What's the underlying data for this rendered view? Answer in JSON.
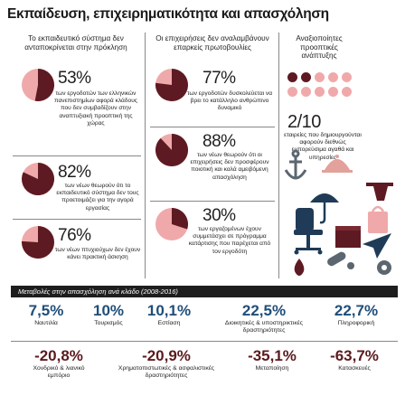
{
  "title": "Εκπαίδευση, επιχειρηματικότητα και απασχόληση",
  "colors": {
    "dark": "#5e1a22",
    "light": "#f0a9aa",
    "accent_blue": "#1f4e79"
  },
  "columns": [
    {
      "header": "Το εκπαιδευτικό σύστημα δεν ανταποκρίνεται στην πρόκληση"
    },
    {
      "header": "Οι επιχειρήσεις δεν αναλαμβάνουν επαρκείς πρωτοβουλίες"
    },
    {
      "header": "Αναξιοποίητες προοπτικές ανάπτυξης"
    }
  ],
  "stats": [
    {
      "value": "53%",
      "fraction": 0.53,
      "text": "των εργοδοτών των ελληνικών πανεπιστημίων αφορά κλάδους που δεν συμβαδίζουν στην αναπτυξιακή προοπτική της χώρας"
    },
    {
      "value": "82%",
      "fraction": 0.82,
      "text": "των νέων θεωρούν ότι το εκπαιδευτικό σύστημα δεν τους προετοιμάζει για την αγορά εργασίας"
    },
    {
      "value": "76%",
      "fraction": 0.76,
      "text": "των νέων πτυχιούχων δεν έχουν κάνει πρακτική άσκηση"
    },
    {
      "value": "77%",
      "fraction": 0.77,
      "text": "των εργοδοτών δυσκολεύεται να βρει το κατάλληλο ανθρώπινο δυναμικό"
    },
    {
      "value": "88%",
      "fraction": 0.88,
      "text": "των νέων θεωρούν ότι οι επιχειρήσεις δεν προσφέρουν ποιοτική και καλά αμειβόμενη απασχόληση"
    },
    {
      "value": "30%",
      "fraction": 0.3,
      "text": "των εργαζομένων έχουν συμμετάσχει σε πρόγραμμα κατάρτισης που παρέχεται από τον εργοδότη"
    },
    {
      "value": "2/10",
      "dots_filled": 2,
      "dots_total": 10,
      "text": "εταιρείες που δημιουργούνται αφορούν διεθνώς εμπορεύσιμα αγαθά και υπηρεσίες"
    }
  ],
  "icons": [
    "anchor-icon",
    "cloche-icon",
    "umbrella-icon",
    "office-chair-icon",
    "tray-icon",
    "bag-icon",
    "box-icon",
    "paper-plane-icon",
    "pills-icon",
    "oil-drop-icon",
    "gear-icon"
  ],
  "banner": "Μεταβολές στην απασχόληση ανά κλάδο (2008-2016)",
  "sectors": [
    {
      "value": "7,5%",
      "label": "Ναυτιλία"
    },
    {
      "value": "10%",
      "label": "Τουρισμός"
    },
    {
      "value": "10,1%",
      "label": "Εστίαση"
    },
    {
      "value": "22,5%",
      "label": "Διοικητικές & υποστηρικτικές δραστηριότητες"
    },
    {
      "value": "22,7%",
      "label": "Πληροφορική"
    },
    {
      "value": "-20,8%",
      "label": "Χονδρικό & λιανικό εμπόριο"
    },
    {
      "value": "-20,9%",
      "label": "Χρηματοπιστωτικές & ασφαλιστικές δραστηριότητες"
    },
    {
      "value": "-35,1%",
      "label": "Μεταποίηση"
    },
    {
      "value": "-63,7%",
      "label": "Κατασκευές"
    }
  ]
}
